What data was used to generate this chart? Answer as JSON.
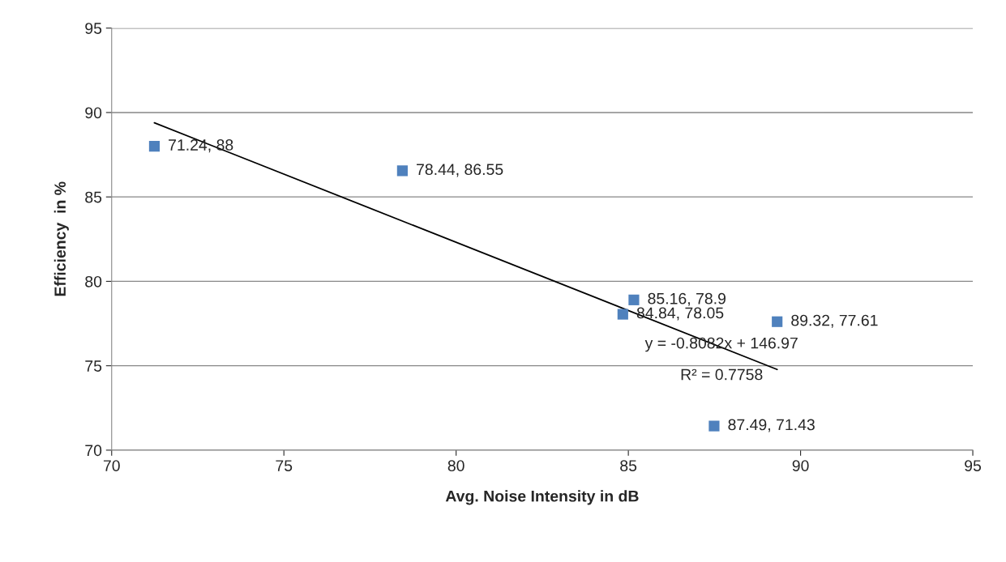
{
  "chart_data": {
    "type": "scatter",
    "xlabel": "Avg. Noise Intensity in dB",
    "ylabel": "Efficiency  in %",
    "series": [
      {
        "color": "#4f81bd",
        "marker": "square",
        "value_labels": [
          "71.24, 88",
          "78.44, 86.55",
          "85.16, 78.9",
          "84.84, 78.05",
          "89.32, 77.61",
          "87.49, 71.43"
        ],
        "x": [
          71.24,
          78.44,
          85.16,
          84.84,
          89.32,
          87.49
        ],
        "values": [
          88,
          86.55,
          78.9,
          78.05,
          77.61,
          71.43
        ]
      },
      {
        "type": "line",
        "color": "#000000",
        "marker": "none",
        "line_style": "solid",
        "x": [
          71.24,
          89.32
        ],
        "values": [
          89.39,
          74.78
        ]
      }
    ],
    "annotations": [
      {
        "text": "y = -0.8082x + 146.97",
        "x": 88.1,
        "y": 75.6
      },
      {
        "text": "R² = 0.7758",
        "x": 88.1,
        "y": 75.6
      }
    ],
    "xlim": [
      70,
      95
    ],
    "xticks": [
      70,
      75,
      80,
      85,
      90,
      95
    ],
    "ylim": [
      70,
      95
    ],
    "yticks": [
      70,
      75,
      80,
      85,
      90,
      95
    ],
    "grid": "y",
    "legend": false
  }
}
